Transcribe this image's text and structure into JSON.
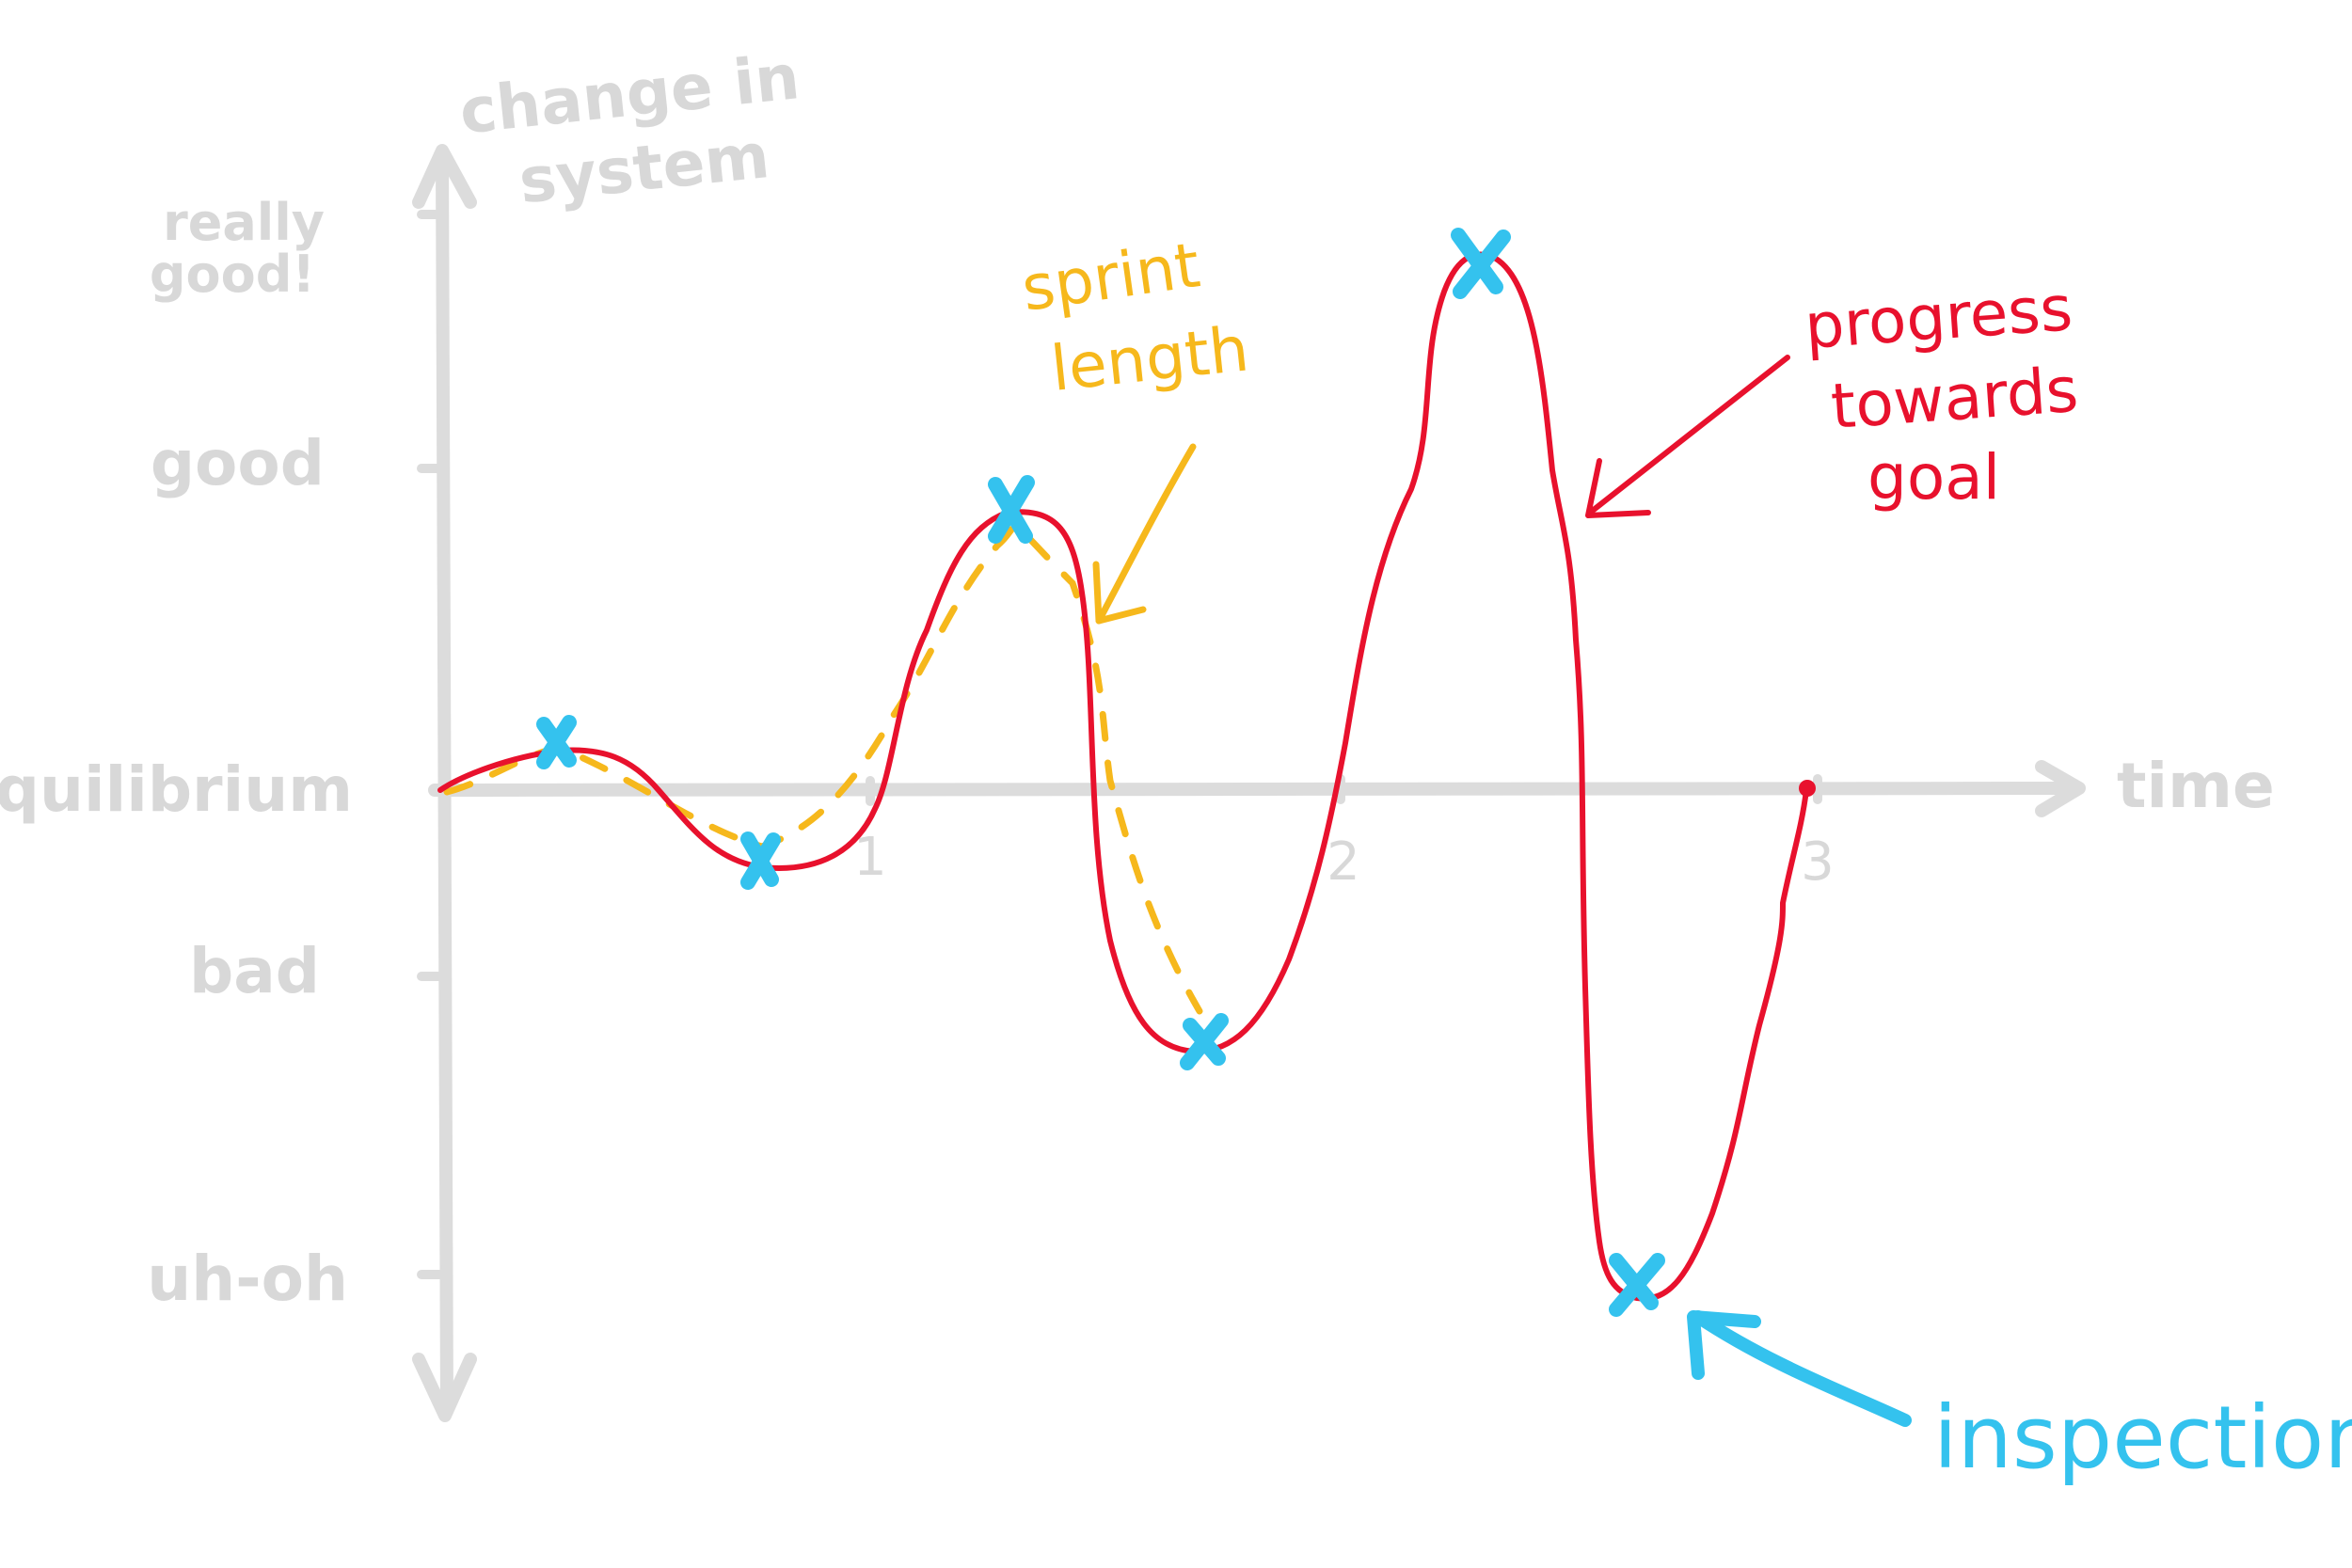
{
  "axes": {
    "y_title_lines": [
      "change in",
      "system"
    ],
    "x_title": "time",
    "y_levels": [
      {
        "label_lines": [
          "really",
          "good!"
        ],
        "value": 2
      },
      {
        "label_lines": [
          "good"
        ],
        "value": 1
      },
      {
        "label_lines": [
          "equilibrium"
        ],
        "value": 0
      },
      {
        "label_lines": [
          "bad"
        ],
        "value": -0.75
      },
      {
        "label_lines": [
          "uh-oh"
        ],
        "value": -1.9
      }
    ],
    "x_ticks": [
      "1",
      "2",
      "3"
    ]
  },
  "annotations": {
    "sprint": [
      "sprint",
      "length"
    ],
    "progress": [
      "progress",
      "towards",
      "goal"
    ],
    "inspection": "inspection"
  },
  "colors": {
    "axis": "#dcdcdc",
    "progress": "#e8112d",
    "sprint": "#f6b81c",
    "inspection": "#34c2ee"
  }
}
